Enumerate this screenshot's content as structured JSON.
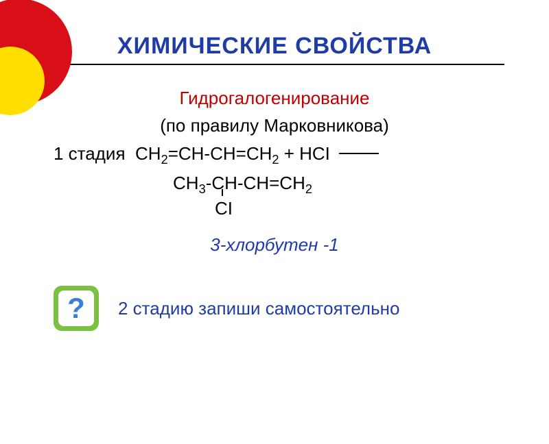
{
  "decoration": {
    "red": "#d80f16",
    "yellow": "#ffde00"
  },
  "title": {
    "text": "ХИМИЧЕСКИЕ СВОЙСТВА",
    "color": "#1f3ca6"
  },
  "subtitle1": {
    "text": "Гидрогалогенирование",
    "color": "#c00000"
  },
  "subtitle2": "(по правилу Марковникова)",
  "stage": {
    "label": "1 стадия",
    "reagent_prefix": "CH",
    "reagent_mid1": "=CH-CH=CH",
    "hcl": " + HCI",
    "sub2": "2"
  },
  "product": {
    "prefix": "CH",
    "sub3": "3",
    "mid": "-CH-CH=CH",
    "sub2": "2",
    "cl": "CI"
  },
  "product_name": {
    "text": "3-хлорбутен -1",
    "color": "#1f3ca6"
  },
  "task": {
    "text": "2 стадию запиши самостоятельно",
    "color": "#1f3ca6"
  },
  "question_icon": {
    "outer_color": "#7ac142",
    "inner_color": "#ffffff",
    "glyph": "?",
    "glyph_color": "#3a7fd5"
  }
}
